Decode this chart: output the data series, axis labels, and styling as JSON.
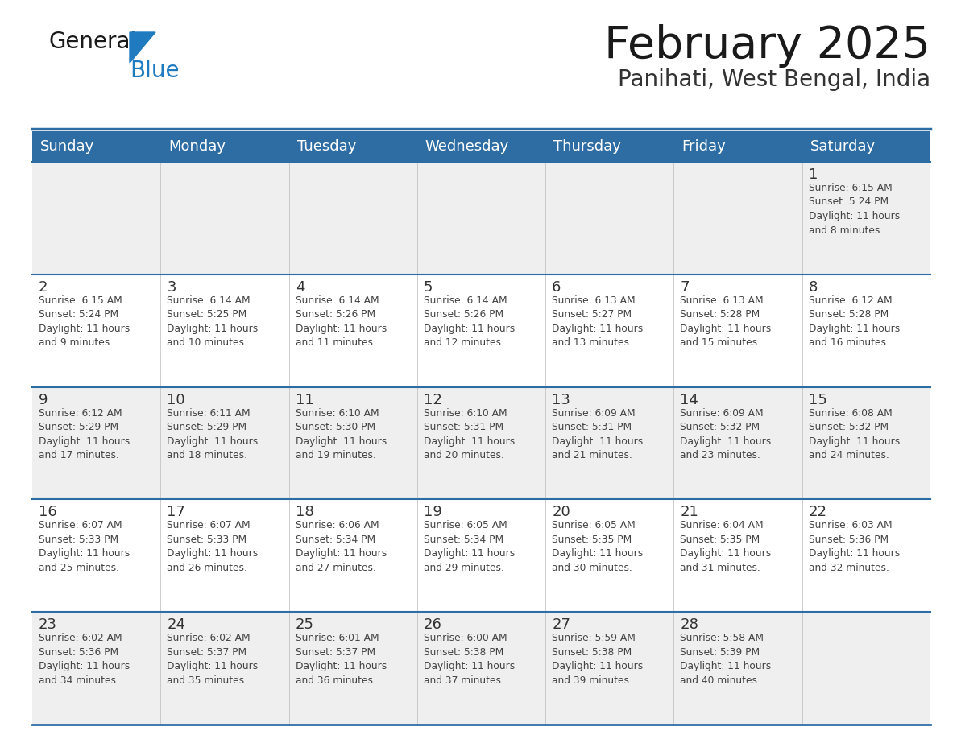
{
  "title": "February 2025",
  "subtitle": "Panihati, West Bengal, India",
  "header_bg": "#2E6DA4",
  "header_text_color": "#FFFFFF",
  "cell_bg_white": "#FFFFFF",
  "cell_bg_light": "#EFEFEF",
  "day_number_color": "#333333",
  "cell_text_color": "#444444",
  "border_color": "#2E6DA4",
  "logo_black": "#1a1a1a",
  "logo_blue": "#1F7AC0",
  "days_of_week": [
    "Sunday",
    "Monday",
    "Tuesday",
    "Wednesday",
    "Thursday",
    "Friday",
    "Saturday"
  ],
  "weeks": [
    [
      {
        "day": null,
        "info": null
      },
      {
        "day": null,
        "info": null
      },
      {
        "day": null,
        "info": null
      },
      {
        "day": null,
        "info": null
      },
      {
        "day": null,
        "info": null
      },
      {
        "day": null,
        "info": null
      },
      {
        "day": 1,
        "info": "Sunrise: 6:15 AM\nSunset: 5:24 PM\nDaylight: 11 hours\nand 8 minutes."
      }
    ],
    [
      {
        "day": 2,
        "info": "Sunrise: 6:15 AM\nSunset: 5:24 PM\nDaylight: 11 hours\nand 9 minutes."
      },
      {
        "day": 3,
        "info": "Sunrise: 6:14 AM\nSunset: 5:25 PM\nDaylight: 11 hours\nand 10 minutes."
      },
      {
        "day": 4,
        "info": "Sunrise: 6:14 AM\nSunset: 5:26 PM\nDaylight: 11 hours\nand 11 minutes."
      },
      {
        "day": 5,
        "info": "Sunrise: 6:14 AM\nSunset: 5:26 PM\nDaylight: 11 hours\nand 12 minutes."
      },
      {
        "day": 6,
        "info": "Sunrise: 6:13 AM\nSunset: 5:27 PM\nDaylight: 11 hours\nand 13 minutes."
      },
      {
        "day": 7,
        "info": "Sunrise: 6:13 AM\nSunset: 5:28 PM\nDaylight: 11 hours\nand 15 minutes."
      },
      {
        "day": 8,
        "info": "Sunrise: 6:12 AM\nSunset: 5:28 PM\nDaylight: 11 hours\nand 16 minutes."
      }
    ],
    [
      {
        "day": 9,
        "info": "Sunrise: 6:12 AM\nSunset: 5:29 PM\nDaylight: 11 hours\nand 17 minutes."
      },
      {
        "day": 10,
        "info": "Sunrise: 6:11 AM\nSunset: 5:29 PM\nDaylight: 11 hours\nand 18 minutes."
      },
      {
        "day": 11,
        "info": "Sunrise: 6:10 AM\nSunset: 5:30 PM\nDaylight: 11 hours\nand 19 minutes."
      },
      {
        "day": 12,
        "info": "Sunrise: 6:10 AM\nSunset: 5:31 PM\nDaylight: 11 hours\nand 20 minutes."
      },
      {
        "day": 13,
        "info": "Sunrise: 6:09 AM\nSunset: 5:31 PM\nDaylight: 11 hours\nand 21 minutes."
      },
      {
        "day": 14,
        "info": "Sunrise: 6:09 AM\nSunset: 5:32 PM\nDaylight: 11 hours\nand 23 minutes."
      },
      {
        "day": 15,
        "info": "Sunrise: 6:08 AM\nSunset: 5:32 PM\nDaylight: 11 hours\nand 24 minutes."
      }
    ],
    [
      {
        "day": 16,
        "info": "Sunrise: 6:07 AM\nSunset: 5:33 PM\nDaylight: 11 hours\nand 25 minutes."
      },
      {
        "day": 17,
        "info": "Sunrise: 6:07 AM\nSunset: 5:33 PM\nDaylight: 11 hours\nand 26 minutes."
      },
      {
        "day": 18,
        "info": "Sunrise: 6:06 AM\nSunset: 5:34 PM\nDaylight: 11 hours\nand 27 minutes."
      },
      {
        "day": 19,
        "info": "Sunrise: 6:05 AM\nSunset: 5:34 PM\nDaylight: 11 hours\nand 29 minutes."
      },
      {
        "day": 20,
        "info": "Sunrise: 6:05 AM\nSunset: 5:35 PM\nDaylight: 11 hours\nand 30 minutes."
      },
      {
        "day": 21,
        "info": "Sunrise: 6:04 AM\nSunset: 5:35 PM\nDaylight: 11 hours\nand 31 minutes."
      },
      {
        "day": 22,
        "info": "Sunrise: 6:03 AM\nSunset: 5:36 PM\nDaylight: 11 hours\nand 32 minutes."
      }
    ],
    [
      {
        "day": 23,
        "info": "Sunrise: 6:02 AM\nSunset: 5:36 PM\nDaylight: 11 hours\nand 34 minutes."
      },
      {
        "day": 24,
        "info": "Sunrise: 6:02 AM\nSunset: 5:37 PM\nDaylight: 11 hours\nand 35 minutes."
      },
      {
        "day": 25,
        "info": "Sunrise: 6:01 AM\nSunset: 5:37 PM\nDaylight: 11 hours\nand 36 minutes."
      },
      {
        "day": 26,
        "info": "Sunrise: 6:00 AM\nSunset: 5:38 PM\nDaylight: 11 hours\nand 37 minutes."
      },
      {
        "day": 27,
        "info": "Sunrise: 5:59 AM\nSunset: 5:38 PM\nDaylight: 11 hours\nand 39 minutes."
      },
      {
        "day": 28,
        "info": "Sunrise: 5:58 AM\nSunset: 5:39 PM\nDaylight: 11 hours\nand 40 minutes."
      },
      {
        "day": null,
        "info": null
      }
    ]
  ]
}
